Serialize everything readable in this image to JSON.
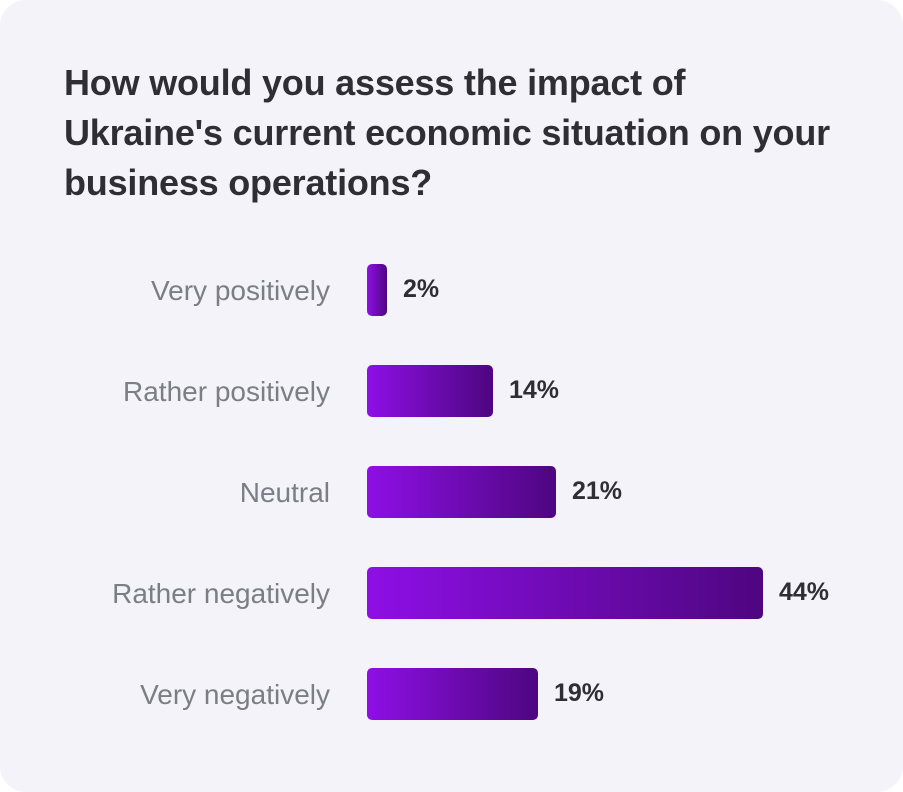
{
  "chart_data": {
    "type": "bar",
    "orientation": "horizontal",
    "title": "How would you assess the impact of Ukraine's current economic situation on your business operations?",
    "categories": [
      "Very positively",
      "Rather positively",
      "Neutral",
      "Rather negatively",
      "Very negatively"
    ],
    "values": [
      2,
      14,
      21,
      44,
      19
    ],
    "value_labels": [
      "2%",
      "14%",
      "21%",
      "44%",
      "19%"
    ],
    "xlim": [
      0,
      44
    ],
    "grid": false,
    "legend": "none",
    "colors": {
      "bar_start": "#8e0fe6",
      "bar_end": "#4e0680",
      "background": "#f3f3f9",
      "title": "#2e2e33",
      "category_text": "#7d7d85",
      "value_text": "#2e2e33"
    }
  }
}
